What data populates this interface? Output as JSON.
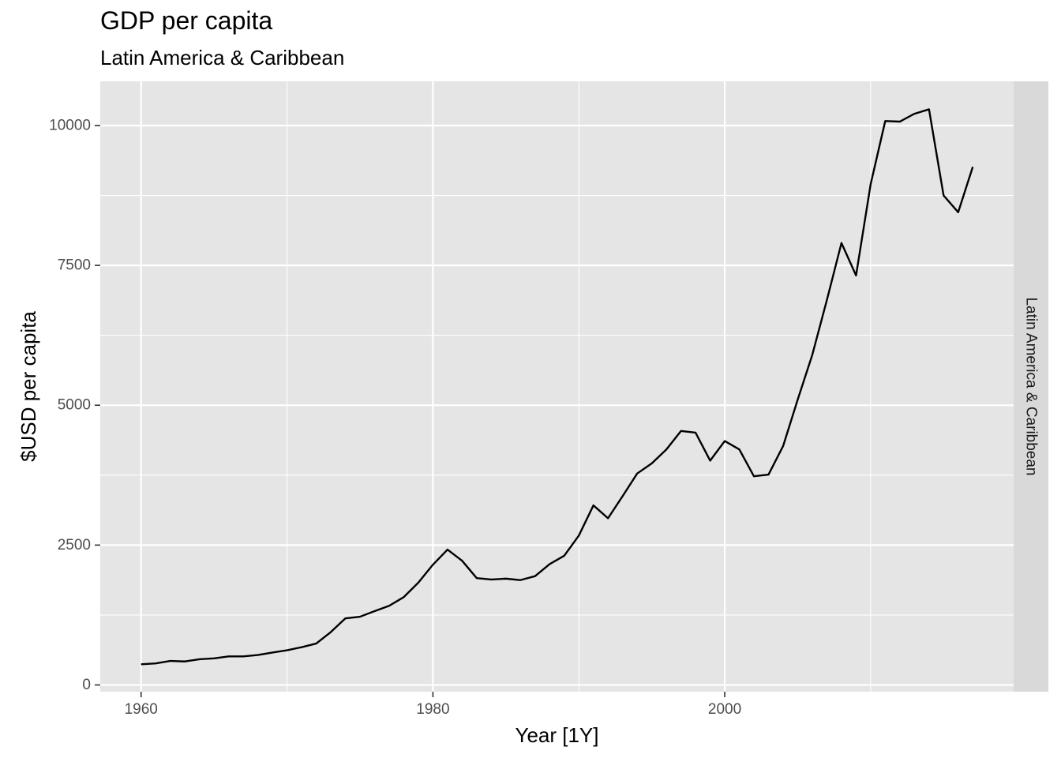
{
  "chart_data": {
    "type": "line",
    "title": "GDP per capita",
    "subtitle": "Latin America & Caribbean",
    "xlabel": "Year [1Y]",
    "ylabel": "$USD per capita",
    "facet_label": "Latin America & Caribbean",
    "xlim": [
      1957.2,
      2019.8
    ],
    "ylim": [
      -120,
      10790
    ],
    "x_ticks": [
      1960,
      1980,
      2000
    ],
    "y_ticks": [
      0,
      2500,
      5000,
      7500,
      10000
    ],
    "x_tick_labels": [
      "1960",
      "1980",
      "2000"
    ],
    "y_tick_labels": [
      "0",
      "2500",
      "5000",
      "7500",
      "10000"
    ],
    "grid": true,
    "line_color": "#000000",
    "panel_color": "#e5e5e5",
    "strip_color": "#d9d9d9",
    "series": [
      {
        "x": [
          1960,
          1961,
          1962,
          1963,
          1964,
          1965,
          1966,
          1967,
          1968,
          1969,
          1970,
          1971,
          1972,
          1973,
          1974,
          1975,
          1976,
          1977,
          1978,
          1979,
          1980,
          1981,
          1982,
          1983,
          1984,
          1985,
          1986,
          1987,
          1988,
          1989,
          1990,
          1991,
          1992,
          1993,
          1994,
          1995,
          1996,
          1997,
          1998,
          1999,
          2000,
          2001,
          2002,
          2003,
          2004,
          2005,
          2006,
          2007,
          2008,
          2009,
          2010,
          2011,
          2012,
          2013,
          2014,
          2015,
          2016,
          2017
        ],
        "values": [
          370,
          385,
          430,
          420,
          460,
          475,
          510,
          510,
          535,
          580,
          620,
          675,
          740,
          945,
          1190,
          1220,
          1320,
          1415,
          1570,
          1830,
          2150,
          2420,
          2220,
          1910,
          1885,
          1900,
          1875,
          1945,
          2160,
          2310,
          2670,
          3210,
          2980,
          3375,
          3780,
          3960,
          4210,
          4540,
          4510,
          4010,
          4360,
          4210,
          3730,
          3760,
          4270,
          5100,
          5900,
          6880,
          7900,
          7320,
          8950,
          10080,
          10070,
          10210,
          10290,
          8750,
          8450,
          9260
        ]
      }
    ]
  }
}
